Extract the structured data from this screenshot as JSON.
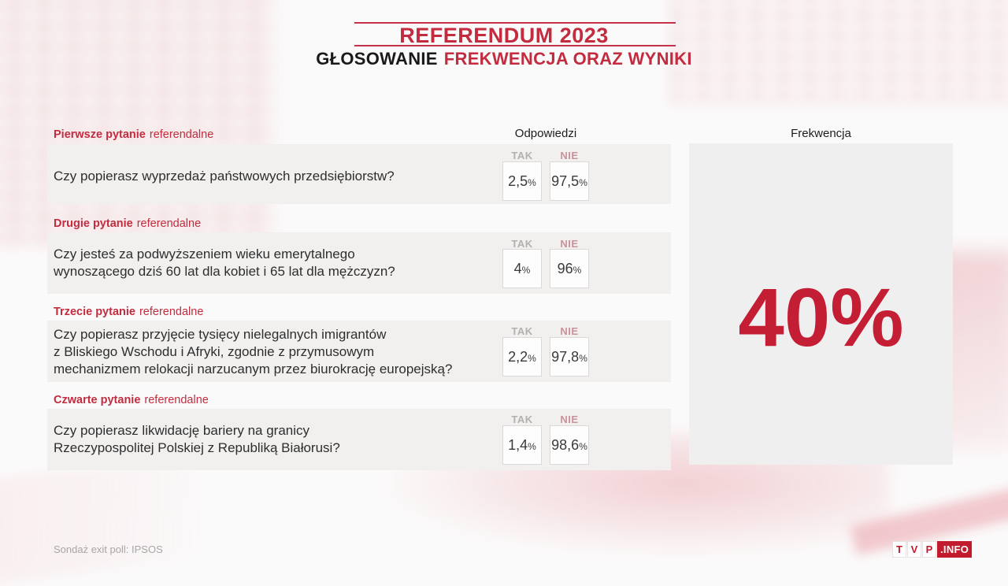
{
  "header": {
    "title": "REFERENDUM 2023",
    "subtitle_black": "GŁOSOWANIE",
    "subtitle_red": "FREKWENCJA ORAZ WYNIKI"
  },
  "answers_column": {
    "header": "Odpowiedzi",
    "yes_label": "TAK",
    "no_label": "NIE",
    "percent_sign": "%"
  },
  "turnout_panel": {
    "header": "Frekwencja",
    "value": "40%"
  },
  "questions": [
    {
      "label_bold": "Pierwsze pytanie",
      "label_rest": "referendalne",
      "text": "Czy popierasz wyprzedaż państwowych przedsiębiorstw?",
      "yes": "2,5",
      "no": "97,5"
    },
    {
      "label_bold": "Drugie pytanie",
      "label_rest": "referendalne",
      "text": "Czy jesteś za podwyższeniem wieku emerytalnego\nwynoszącego dziś 60 lat dla kobiet i 65 lat dla mężczyzn?",
      "yes": "4",
      "no": "96"
    },
    {
      "label_bold": "Trzecie pytanie",
      "label_rest": "referendalne",
      "text": "Czy popierasz przyjęcie tysięcy nielegalnych imigrantów\nz Bliskiego Wschodu i Afryki, zgodnie z przymusowym\nmechanizmem relokacji narzucanym przez biurokrację europejską?",
      "yes": "2,2",
      "no": "97,8"
    },
    {
      "label_bold": "Czwarte pytanie",
      "label_rest": "referendalne",
      "text": "Czy popierasz likwidację bariery na granicy\nRzeczypospolitej Polskiej z Republiką Białorusi?",
      "yes": "1,4",
      "no": "98,6"
    }
  ],
  "footer": {
    "source": "Sondaż exit poll: IPSOS",
    "logo": {
      "t": "T",
      "v": "V",
      "p": "P",
      "info": ".INFO"
    }
  },
  "colors": {
    "accent_red": "#c32b3f",
    "big_percent_red": "#c41e35",
    "logo_red": "#c21b2d",
    "band_gray": "#f1f0ef",
    "yes_label_gray": "#b2afaf",
    "no_label_pink": "#ca929b"
  },
  "chart_data": {
    "type": "table",
    "title": "REFERENDUM 2023 — GŁOSOWANIE FREKWENCJA ORAZ WYNIKI",
    "columns": [
      "Pytanie",
      "TAK %",
      "NIE %"
    ],
    "rows": [
      [
        "Pierwsze pytanie referendalne: Czy popierasz wyprzedaż państwowych przedsiębiorstw?",
        2.5,
        97.5
      ],
      [
        "Drugie pytanie referendalne: Czy jesteś za podwyższeniem wieku emerytalnego wynoszącego dziś 60 lat dla kobiet i 65 lat dla mężczyzn?",
        4,
        96
      ],
      [
        "Trzecie pytanie referendalne: Czy popierasz przyjęcie tysięcy nielegalnych imigrantów z Bliskiego Wschodu i Afryki, zgodnie z przymusowym mechanizmem relokacji narzucanym przez biurokrację europejską?",
        2.2,
        97.8
      ],
      [
        "Czwarte pytanie referendalne: Czy popierasz likwidację bariery na granicy Rzeczypospolitej Polskiej z Republiką Białorusi?",
        1.4,
        98.6
      ]
    ],
    "turnout_percent": 40,
    "source": "Sondaż exit poll: IPSOS"
  }
}
